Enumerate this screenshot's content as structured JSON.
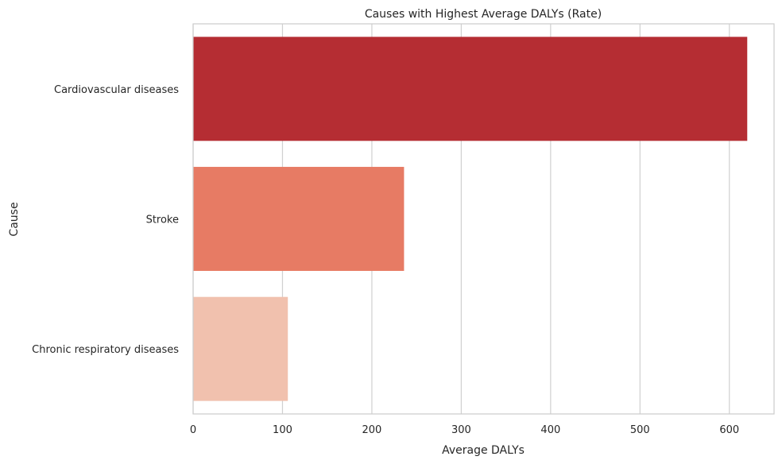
{
  "chart_data": {
    "type": "bar",
    "orientation": "horizontal",
    "title": "Causes with Highest Average DALYs (Rate)",
    "xlabel": "Average DALYs",
    "ylabel": "Cause",
    "xlim": [
      0,
      650
    ],
    "xticks": [
      0,
      100,
      200,
      300,
      400,
      500,
      600
    ],
    "grid": "x",
    "categories": [
      "Cardiovascular diseases",
      "Stroke",
      "Chronic respiratory diseases"
    ],
    "values": [
      620,
      236,
      106
    ],
    "colors": [
      "#b52d33",
      "#e77b64",
      "#f1c1ae"
    ]
  }
}
